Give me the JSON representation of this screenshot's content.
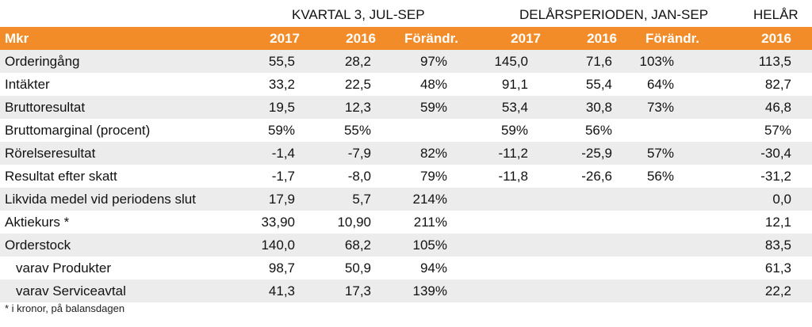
{
  "group_headers": {
    "quarter": "KVARTAL 3,  JUL-SEP",
    "period": "DELÅRSPERIODEN, JAN-SEP",
    "year": "HELÅR"
  },
  "columns": [
    "Mkr",
    "2017",
    "2016",
    "Förändr.",
    "2017",
    "2016",
    "Förändr.",
    "2016"
  ],
  "rows": [
    {
      "label": "Orderingång",
      "cells": [
        "55,5",
        "28,2",
        "97%",
        "145,0",
        "71,6",
        "103%",
        "113,5"
      ]
    },
    {
      "label": "Intäkter",
      "cells": [
        "33,2",
        "22,5",
        "48%",
        "91,1",
        "55,4",
        "64%",
        "82,7"
      ]
    },
    {
      "label": "Bruttoresultat",
      "cells": [
        "19,5",
        "12,3",
        "59%",
        "53,4",
        "30,8",
        "73%",
        "46,8"
      ]
    },
    {
      "label": "Bruttomarginal (procent)",
      "cells": [
        "59%",
        "55%",
        "",
        "59%",
        "56%",
        "",
        "57%"
      ]
    },
    {
      "label": "Rörelseresultat",
      "cells": [
        "-1,4",
        "-7,9",
        "82%",
        "-11,2",
        "-25,9",
        "57%",
        "-30,4"
      ]
    },
    {
      "label": "Resultat efter skatt",
      "cells": [
        "-1,7",
        "-8,0",
        "79%",
        "-11,8",
        "-26,6",
        "56%",
        "-31,2"
      ]
    },
    {
      "label": "Likvida medel vid periodens slut",
      "cells": [
        "17,9",
        "5,7",
        "214%",
        "",
        "",
        "",
        "0,0"
      ]
    },
    {
      "label": "Aktiekurs *",
      "cells": [
        "33,90",
        "10,90",
        "211%",
        "",
        "",
        "",
        "12,1"
      ]
    },
    {
      "label": "Orderstock",
      "cells": [
        "140,0",
        "68,2",
        "105%",
        "",
        "",
        "",
        "83,5"
      ]
    },
    {
      "label": "varav Produkter",
      "cells": [
        "98,7",
        "50,9",
        "94%",
        "",
        "",
        "",
        "61,3"
      ]
    },
    {
      "label": "varav Serviceavtal",
      "cells": [
        "41,3",
        "17,3",
        "139%",
        "",
        "",
        "",
        "22,2"
      ]
    }
  ],
  "footnote": "* i kronor, på balansdagen",
  "colors": {
    "header_bg": "#f28c28",
    "header_text": "#ffffff",
    "stripe": "#ececec"
  }
}
